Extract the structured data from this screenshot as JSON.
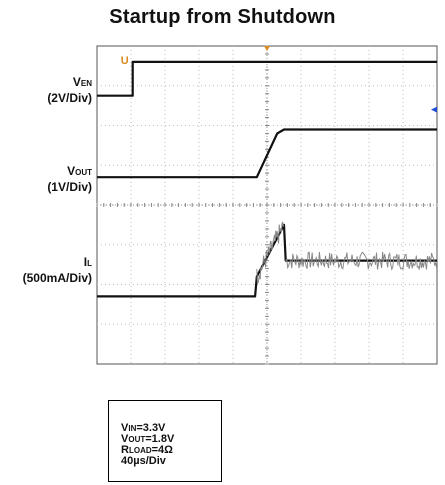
{
  "chart_data": {
    "type": "line",
    "title": "Startup from Shutdown",
    "grid": true,
    "x_divisions": 10,
    "y_divisions": 8,
    "x_scale": "40µs/Div",
    "trigger_marker": "T",
    "channel_marker": "U",
    "series": [
      {
        "name_main": "V",
        "name_sub": "EN",
        "scale": "(2V/Div)",
        "x": [
          0,
          1.05,
          1.05,
          10
        ],
        "y": [
          6.75,
          6.75,
          7.6,
          7.6
        ]
      },
      {
        "name_main": "V",
        "name_sub": "OUT",
        "scale": "(1V/Div)",
        "x": [
          0,
          4.7,
          5.3,
          5.5,
          10
        ],
        "y": [
          4.7,
          4.7,
          5.8,
          5.9,
          5.9
        ]
      },
      {
        "name_main": "I",
        "name_sub": "L",
        "scale": "(500mA/Div)",
        "x": [
          0,
          4.65,
          4.7,
          5.5,
          5.55,
          10
        ],
        "y": [
          1.7,
          1.7,
          2.2,
          3.5,
          2.6,
          2.6
        ]
      }
    ]
  },
  "conditions": [
    {
      "main": "V",
      "sub": "IN",
      "value": "=3.3V"
    },
    {
      "main": "V",
      "sub": "OUT",
      "value": "=1.8V"
    },
    {
      "main": "R",
      "sub": "LOAD",
      "value": "=4Ω"
    },
    {
      "main": "",
      "sub": "",
      "value": "40µs/Div"
    }
  ]
}
